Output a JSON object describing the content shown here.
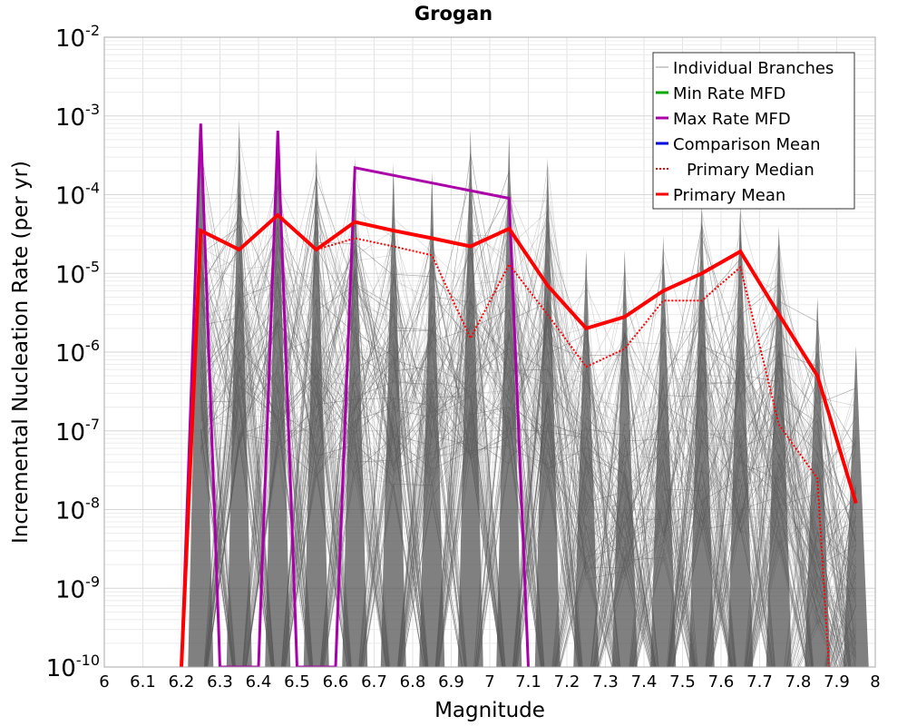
{
  "chart_data": {
    "type": "line",
    "title": "Grogan",
    "xlabel": "Magnitude",
    "ylabel": "Incremental Nucleation Rate (per yr)",
    "xlim": [
      6,
      8
    ],
    "ylim": [
      1e-10,
      0.01
    ],
    "yscale": "log",
    "grid": true,
    "legend_position": "top-right",
    "x_ticks": [
      "6",
      "6.1",
      "6.2",
      "6.3",
      "6.4",
      "6.5",
      "6.6",
      "6.7",
      "6.8",
      "6.9",
      "7",
      "7.1",
      "7.2",
      "7.3",
      "7.4",
      "7.5",
      "7.6",
      "7.7",
      "7.8",
      "7.9",
      "8"
    ],
    "y_ticks": [
      {
        "base": "10",
        "exp": "-10",
        "value": 1e-10
      },
      {
        "base": "10",
        "exp": "-9",
        "value": 1e-09
      },
      {
        "base": "10",
        "exp": "-8",
        "value": 1e-08
      },
      {
        "base": "10",
        "exp": "-7",
        "value": 1e-07
      },
      {
        "base": "10",
        "exp": "-6",
        "value": 1e-06
      },
      {
        "base": "10",
        "exp": "-5",
        "value": 1e-05
      },
      {
        "base": "10",
        "exp": "-4",
        "value": 0.0001
      },
      {
        "base": "10",
        "exp": "-3",
        "value": 0.001
      },
      {
        "base": "10",
        "exp": "-2",
        "value": 0.01
      }
    ],
    "series": [
      {
        "name": "Individual Branches",
        "color": "#999999",
        "style": "thin",
        "x": [
          6.25,
          6.35,
          6.45,
          6.55,
          6.65,
          6.75,
          6.85,
          6.95,
          7.05,
          7.15,
          7.25,
          7.35,
          7.45,
          7.55,
          7.65,
          7.75,
          7.85,
          7.95
        ],
        "upper": [
          0.0008,
          0.0009,
          0.0007,
          0.0004,
          0.0003,
          0.00025,
          0.0002,
          0.0007,
          0.0006,
          0.0003,
          2e-05,
          2e-05,
          3e-05,
          8e-05,
          8e-05,
          4e-05,
          5e-06,
          1.2e-06
        ]
      },
      {
        "name": "Min Rate MFD",
        "color": "#00aa00",
        "style": "solid",
        "x": [],
        "y": []
      },
      {
        "name": "Max Rate MFD",
        "color": "#aa00aa",
        "style": "solid",
        "x": [
          6.2,
          6.25,
          6.3,
          6.4,
          6.45,
          6.5,
          6.6,
          6.65,
          7.05,
          7.1
        ],
        "y": [
          1e-10,
          0.0008,
          1e-10,
          1e-10,
          0.00065,
          1e-10,
          1e-10,
          0.00022,
          9e-05,
          1e-10
        ]
      },
      {
        "name": "Comparison Mean",
        "color": "#0000dd",
        "style": "solid",
        "x": [],
        "y": []
      },
      {
        "name": "Primary Median",
        "color": "#ff0000",
        "style": "dotted",
        "x": [
          6.2,
          6.25,
          6.35,
          6.45,
          6.55,
          6.65,
          6.75,
          6.85,
          6.95,
          7.05,
          7.15,
          7.25,
          7.35,
          7.45,
          7.55,
          7.65,
          7.75,
          7.85,
          7.88
        ],
        "y": [
          1e-10,
          3.5e-05,
          2e-05,
          5.5e-05,
          2e-05,
          2.8e-05,
          2.2e-05,
          1.7e-05,
          1.5e-06,
          1.3e-05,
          3e-06,
          6.5e-07,
          1.1e-06,
          4.5e-06,
          4.5e-06,
          1.2e-05,
          1.2e-07,
          2.5e-08,
          1e-10
        ]
      },
      {
        "name": "Primary Mean",
        "color": "#ff0000",
        "style": "bold",
        "x": [
          6.2,
          6.25,
          6.35,
          6.45,
          6.55,
          6.65,
          6.75,
          6.85,
          6.95,
          7.05,
          7.15,
          7.25,
          7.35,
          7.45,
          7.55,
          7.65,
          7.75,
          7.85,
          7.95
        ],
        "y": [
          1e-10,
          3.5e-05,
          2e-05,
          5.5e-05,
          2e-05,
          4.5e-05,
          3.5e-05,
          2.8e-05,
          2.2e-05,
          3.7e-05,
          7e-06,
          2e-06,
          2.8e-06,
          6e-06,
          1e-05,
          1.9e-05,
          3e-06,
          5e-07,
          1.2e-08
        ]
      }
    ]
  }
}
